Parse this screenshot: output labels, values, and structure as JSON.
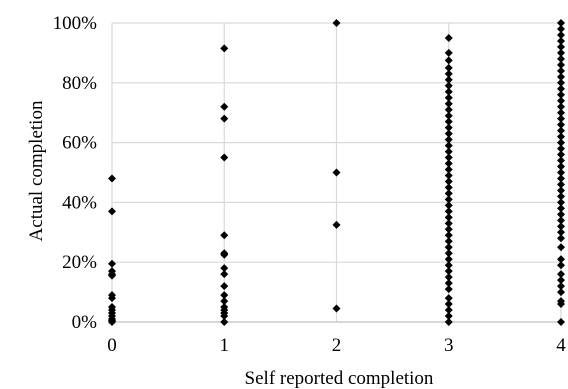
{
  "chart_data": {
    "type": "scatter",
    "title": "",
    "xlabel": "Self reported completion",
    "ylabel": "Actual completion",
    "xlim": [
      0,
      4
    ],
    "ylim": [
      0,
      100
    ],
    "x_ticks": [
      0,
      1,
      2,
      3,
      4
    ],
    "y_ticks": [
      0,
      20,
      40,
      60,
      80,
      100
    ],
    "y_tick_labels": [
      "0%",
      "20%",
      "40%",
      "60%",
      "80%",
      "100%"
    ],
    "x_tick_labels": [
      "0",
      "1",
      "2",
      "3",
      "4"
    ],
    "grid": true,
    "legend": "none",
    "marker": "diamond",
    "marker_color": "#000000",
    "series": [
      {
        "points": [
          [
            0,
            48
          ],
          [
            0,
            37
          ],
          [
            0,
            19.5
          ],
          [
            0,
            17
          ],
          [
            0,
            16
          ],
          [
            0,
            15.5
          ],
          [
            0,
            9
          ],
          [
            0,
            8
          ],
          [
            0,
            5
          ],
          [
            0,
            4
          ],
          [
            0,
            3
          ],
          [
            0,
            2
          ],
          [
            0,
            1
          ],
          [
            0,
            0.5
          ],
          [
            0,
            0
          ],
          [
            1,
            91.5
          ],
          [
            1,
            72
          ],
          [
            1,
            68
          ],
          [
            1,
            55
          ],
          [
            1,
            29
          ],
          [
            1,
            23
          ],
          [
            1,
            22.5
          ],
          [
            1,
            18
          ],
          [
            1,
            16
          ],
          [
            1,
            12
          ],
          [
            1,
            9
          ],
          [
            1,
            7
          ],
          [
            1,
            5
          ],
          [
            1,
            4
          ],
          [
            1,
            3
          ],
          [
            1,
            2
          ],
          [
            1,
            0
          ],
          [
            2,
            100
          ],
          [
            2,
            50
          ],
          [
            2,
            32.5
          ],
          [
            2,
            4.5
          ],
          [
            3,
            95
          ],
          [
            3,
            90
          ],
          [
            3,
            87.5
          ],
          [
            3,
            85
          ],
          [
            3,
            83
          ],
          [
            3,
            81
          ],
          [
            3,
            79
          ],
          [
            3,
            77
          ],
          [
            3,
            75
          ],
          [
            3,
            73
          ],
          [
            3,
            71
          ],
          [
            3,
            69
          ],
          [
            3,
            67
          ],
          [
            3,
            65
          ],
          [
            3,
            63
          ],
          [
            3,
            61
          ],
          [
            3,
            59
          ],
          [
            3,
            57
          ],
          [
            3,
            55
          ],
          [
            3,
            53
          ],
          [
            3,
            51
          ],
          [
            3,
            49
          ],
          [
            3,
            47
          ],
          [
            3,
            45
          ],
          [
            3,
            43
          ],
          [
            3,
            41
          ],
          [
            3,
            39
          ],
          [
            3,
            37
          ],
          [
            3,
            35
          ],
          [
            3,
            33
          ],
          [
            3,
            31
          ],
          [
            3,
            29
          ],
          [
            3,
            27
          ],
          [
            3,
            25
          ],
          [
            3,
            23
          ],
          [
            3,
            21
          ],
          [
            3,
            19
          ],
          [
            3,
            17
          ],
          [
            3,
            15
          ],
          [
            3,
            13
          ],
          [
            3,
            11
          ],
          [
            3,
            8
          ],
          [
            3,
            6
          ],
          [
            3,
            4
          ],
          [
            3,
            2
          ],
          [
            3,
            0
          ],
          [
            4,
            100
          ],
          [
            4,
            98
          ],
          [
            4,
            96
          ],
          [
            4,
            94
          ],
          [
            4,
            92
          ],
          [
            4,
            90
          ],
          [
            4,
            88
          ],
          [
            4,
            86
          ],
          [
            4,
            84
          ],
          [
            4,
            82
          ],
          [
            4,
            80
          ],
          [
            4,
            78
          ],
          [
            4,
            76
          ],
          [
            4,
            74
          ],
          [
            4,
            72
          ],
          [
            4,
            70
          ],
          [
            4,
            68
          ],
          [
            4,
            66
          ],
          [
            4,
            64
          ],
          [
            4,
            62
          ],
          [
            4,
            60
          ],
          [
            4,
            58
          ],
          [
            4,
            56
          ],
          [
            4,
            54
          ],
          [
            4,
            52
          ],
          [
            4,
            50
          ],
          [
            4,
            48
          ],
          [
            4,
            46
          ],
          [
            4,
            44
          ],
          [
            4,
            42
          ],
          [
            4,
            40
          ],
          [
            4,
            38
          ],
          [
            4,
            36
          ],
          [
            4,
            34
          ],
          [
            4,
            32
          ],
          [
            4,
            30
          ],
          [
            4,
            28
          ],
          [
            4,
            25
          ],
          [
            4,
            21
          ],
          [
            4,
            19
          ],
          [
            4,
            16
          ],
          [
            4,
            14
          ],
          [
            4,
            12
          ],
          [
            4,
            10
          ],
          [
            4,
            7
          ],
          [
            4,
            6
          ],
          [
            4,
            0
          ]
        ]
      }
    ]
  }
}
